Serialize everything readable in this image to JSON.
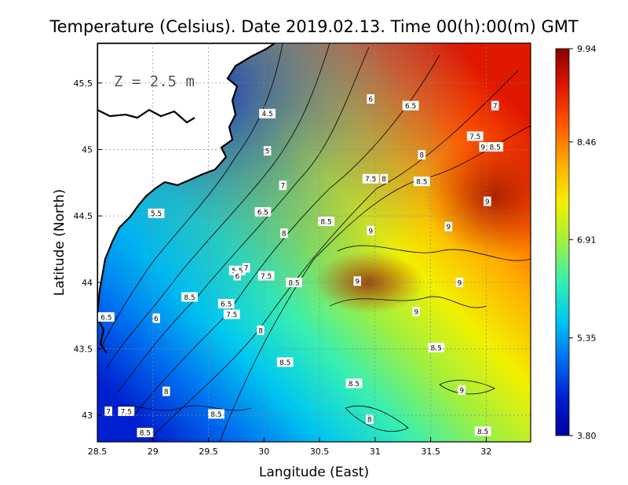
{
  "title": "Temperature (Celsius). Date 2019.02.13. Time 00(h):00(m)  GMT",
  "depth_label": "Z  =  2.5  m",
  "x_axis": {
    "label": "Langitude (East)",
    "range": [
      28.5,
      32.4
    ],
    "ticks": [
      "28.5",
      "29",
      "29.5",
      "30",
      "30.5",
      "31",
      "31.5",
      "32"
    ],
    "tick_values": [
      28.5,
      29,
      29.5,
      30,
      30.5,
      31,
      31.5,
      32
    ]
  },
  "y_axis": {
    "label": "Latitude (North)",
    "range": [
      42.8,
      45.8
    ],
    "ticks": [
      "43",
      "43.5",
      "44",
      "44.5",
      "45",
      "45.5"
    ],
    "tick_values": [
      43,
      43.5,
      44,
      44.5,
      45,
      45.5
    ]
  },
  "colorbar": {
    "min": 3.8,
    "max": 9.94,
    "labels": [
      "9.94",
      "8.46",
      "6.91",
      "5.35",
      "3.80"
    ],
    "label_values": [
      9.94,
      8.46,
      6.91,
      5.35,
      3.8
    ],
    "colors": [
      "#8a0000",
      "#e01800",
      "#ff5a00",
      "#ffb000",
      "#f2f000",
      "#a0ef40",
      "#38efb0",
      "#00c8f0",
      "#0070f0",
      "#0020d0",
      "#0000a0"
    ]
  },
  "contour_labels": [
    {
      "text": "4.5",
      "lon": 30.03,
      "lat": 45.27
    },
    {
      "text": "5",
      "lon": 30.03,
      "lat": 44.99
    },
    {
      "text": "5.5",
      "lon": 29.03,
      "lat": 44.52
    },
    {
      "text": "5.5",
      "lon": 29.76,
      "lat": 44.09
    },
    {
      "text": "6",
      "lon": 30.96,
      "lat": 45.38
    },
    {
      "text": "6",
      "lon": 29.76,
      "lat": 44.05
    },
    {
      "text": "6",
      "lon": 29.03,
      "lat": 43.73
    },
    {
      "text": "6.5",
      "lon": 31.32,
      "lat": 45.33
    },
    {
      "text": "6.5",
      "lon": 29.99,
      "lat": 44.53
    },
    {
      "text": "6.5",
      "lon": 28.58,
      "lat": 43.74
    },
    {
      "text": "6.5",
      "lon": 29.66,
      "lat": 43.84
    },
    {
      "text": "7",
      "lon": 32.08,
      "lat": 45.33
    },
    {
      "text": "7",
      "lon": 30.17,
      "lat": 44.73
    },
    {
      "text": "7",
      "lon": 29.84,
      "lat": 44.11
    },
    {
      "text": "7",
      "lon": 28.6,
      "lat": 43.03
    },
    {
      "text": "7.5",
      "lon": 31.9,
      "lat": 45.1
    },
    {
      "text": "7.5",
      "lon": 30.96,
      "lat": 44.78
    },
    {
      "text": "7.5",
      "lon": 30.02,
      "lat": 44.05
    },
    {
      "text": "7.5",
      "lon": 29.71,
      "lat": 43.76
    },
    {
      "text": "7.5",
      "lon": 28.76,
      "lat": 43.03
    },
    {
      "text": "8",
      "lon": 31.08,
      "lat": 44.78
    },
    {
      "text": "8",
      "lon": 31.42,
      "lat": 44.96
    },
    {
      "text": "8",
      "lon": 30.18,
      "lat": 44.37
    },
    {
      "text": "8",
      "lon": 29.97,
      "lat": 43.64
    },
    {
      "text": "8",
      "lon": 29.12,
      "lat": 43.18
    },
    {
      "text": "8",
      "lon": 30.95,
      "lat": 42.97
    },
    {
      "text": "8.5",
      "lon": 32.08,
      "lat": 45.02
    },
    {
      "text": "8.5",
      "lon": 31.42,
      "lat": 44.76
    },
    {
      "text": "8.5",
      "lon": 30.56,
      "lat": 44.46
    },
    {
      "text": "8.5",
      "lon": 30.27,
      "lat": 44.0
    },
    {
      "text": "8.5",
      "lon": 29.33,
      "lat": 43.89
    },
    {
      "text": "8.5",
      "lon": 30.19,
      "lat": 43.4
    },
    {
      "text": "8.5",
      "lon": 30.81,
      "lat": 43.24
    },
    {
      "text": "8.5",
      "lon": 31.55,
      "lat": 43.51
    },
    {
      "text": "8.5",
      "lon": 29.57,
      "lat": 43.01
    },
    {
      "text": "8.5",
      "lon": 28.93,
      "lat": 42.87
    },
    {
      "text": "8.5",
      "lon": 31.97,
      "lat": 42.88
    },
    {
      "text": "9",
      "lon": 31.97,
      "lat": 45.02
    },
    {
      "text": "9",
      "lon": 32.01,
      "lat": 44.61
    },
    {
      "text": "9",
      "lon": 30.96,
      "lat": 44.39
    },
    {
      "text": "9",
      "lon": 31.66,
      "lat": 44.42
    },
    {
      "text": "9",
      "lon": 30.84,
      "lat": 44.01
    },
    {
      "text": "9",
      "lon": 31.76,
      "lat": 44.0
    },
    {
      "text": "9",
      "lon": 31.37,
      "lat": 43.78
    },
    {
      "text": "9",
      "lon": 31.78,
      "lat": 43.19
    }
  ]
}
